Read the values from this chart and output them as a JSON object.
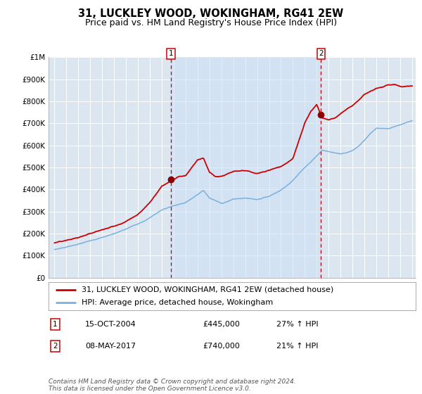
{
  "title": "31, LUCKLEY WOOD, WOKINGHAM, RG41 2EW",
  "subtitle": "Price paid vs. HM Land Registry's House Price Index (HPI)",
  "background_color": "#ffffff",
  "plot_background_color": "#dce6f1",
  "grid_color": "#ffffff",
  "hpi_line_color": "#7ab0de",
  "price_line_color": "#cc0000",
  "marker1_date_x": 2004.79,
  "marker1_price": 445000,
  "marker2_date_x": 2017.36,
  "marker2_price": 740000,
  "marker_color": "#8b0000",
  "dashed_line_color": "#cc0000",
  "span_color": "#cce0f5",
  "ylim": [
    0,
    1000000
  ],
  "xlim": [
    1994.5,
    2025.3
  ],
  "yticks": [
    0,
    100000,
    200000,
    300000,
    400000,
    500000,
    600000,
    700000,
    800000,
    900000,
    1000000
  ],
  "ytick_labels": [
    "£0",
    "£100K",
    "£200K",
    "£300K",
    "£400K",
    "£500K",
    "£600K",
    "£700K",
    "£800K",
    "£900K",
    "£1M"
  ],
  "xticks": [
    1995,
    1996,
    1997,
    1998,
    1999,
    2000,
    2001,
    2002,
    2003,
    2004,
    2005,
    2006,
    2007,
    2008,
    2009,
    2010,
    2011,
    2012,
    2013,
    2014,
    2015,
    2016,
    2017,
    2018,
    2019,
    2020,
    2021,
    2022,
    2023,
    2024,
    2025
  ],
  "legend_label_price": "31, LUCKLEY WOOD, WOKINGHAM, RG41 2EW (detached house)",
  "legend_label_hpi": "HPI: Average price, detached house, Wokingham",
  "annotation1_label": "1",
  "annotation1_date": "15-OCT-2004",
  "annotation1_price_str": "£445,000",
  "annotation1_hpi": "27% ↑ HPI",
  "annotation2_label": "2",
  "annotation2_date": "08-MAY-2017",
  "annotation2_price_str": "£740,000",
  "annotation2_hpi": "21% ↑ HPI",
  "footer_text": "Contains HM Land Registry data © Crown copyright and database right 2024.\nThis data is licensed under the Open Government Licence v3.0.",
  "title_fontsize": 10.5,
  "subtitle_fontsize": 9,
  "tick_fontsize": 7.5,
  "legend_fontsize": 8,
  "annotation_fontsize": 8,
  "footer_fontsize": 6.5
}
